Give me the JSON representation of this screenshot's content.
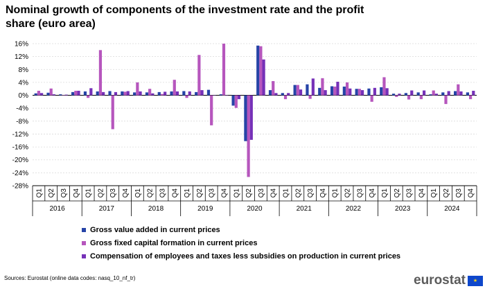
{
  "title": "Nominal growth of components of the investment rate and the profit share (euro area)",
  "source": "Sources: Eurostat (online data codes: nasq_10_nf_tr)",
  "logo": {
    "text": "eurostat",
    "flag_symbol": "★"
  },
  "chart_data": {
    "type": "bar",
    "title": "Nominal growth of components of the investment rate and the profit share (euro area)",
    "ylim": [
      -28,
      16
    ],
    "yticks": [
      16,
      12,
      8,
      4,
      0,
      -4,
      -8,
      -12,
      -16,
      -20,
      -24,
      -28
    ],
    "ytick_labels": [
      "16%",
      "12%",
      "8%",
      "4%",
      "0%",
      "-4%",
      "-8%",
      "-12%",
      "-16%",
      "-20%",
      "-24%",
      "-28%"
    ],
    "grid": true,
    "legend_position": "bottom",
    "quarter_labels": [
      "Q1",
      "Q2",
      "Q3",
      "Q4",
      "Q1",
      "Q2",
      "Q3",
      "Q4",
      "Q1",
      "Q2",
      "Q3",
      "Q4",
      "Q1",
      "Q2",
      "Q3",
      "Q4",
      "Q1",
      "Q2",
      "Q3",
      "Q4",
      "Q1",
      "Q2",
      "Q3",
      "Q4",
      "Q1",
      "Q2",
      "Q3",
      "Q4",
      "Q1",
      "Q2",
      "Q3",
      "Q4",
      "Q1",
      "Q2",
      "Q3",
      "Q4"
    ],
    "years": [
      "2016",
      "2017",
      "2018",
      "2019",
      "2020",
      "2021",
      "2022",
      "2023",
      "2024"
    ],
    "series": [
      {
        "name": "Gross value added in current prices",
        "color": "#2644a7",
        "values": [
          0.6,
          0.8,
          0.3,
          1.0,
          1.2,
          1.2,
          1.3,
          1.2,
          0.9,
          0.9,
          1.0,
          1.2,
          1.3,
          1.0,
          1.7,
          0.3,
          -3.2,
          -14.2,
          15.4,
          1.6,
          0.7,
          3.2,
          3.4,
          2.3,
          2.8,
          2.7,
          2.0,
          2.1,
          2.5,
          0.5,
          0.7,
          0.9,
          0.3,
          0.9,
          1.3,
          0.9
        ]
      },
      {
        "name": "Gross fixed capital formation in current prices",
        "color": "#b656bd",
        "values": [
          1.4,
          2.1,
          0.0,
          1.4,
          -0.8,
          14.0,
          -10.5,
          1.1,
          4.0,
          2.0,
          0.4,
          4.8,
          -0.8,
          12.5,
          -9.3,
          16.0,
          -3.9,
          -25.3,
          15.2,
          4.4,
          -1.2,
          3.2,
          -1.1,
          5.3,
          2.7,
          4.0,
          2.0,
          -2.0,
          5.6,
          -0.5,
          -1.3,
          -1.2,
          1.5,
          -2.7,
          3.4,
          -1.2
        ]
      },
      {
        "name": "Compensation of employees and taxes less subsidies on production in current prices",
        "color": "#7631b8",
        "values": [
          0.7,
          0.3,
          0.2,
          1.4,
          2.2,
          1.0,
          1.0,
          1.3,
          1.2,
          0.6,
          1.1,
          1.2,
          1.2,
          1.6,
          0.0,
          0.0,
          -1.2,
          -13.8,
          11.1,
          0.7,
          0.7,
          1.8,
          5.2,
          1.6,
          4.2,
          2.1,
          1.6,
          2.3,
          2.2,
          0.5,
          1.5,
          1.5,
          0.5,
          1.3,
          1.2,
          1.4
        ]
      }
    ]
  }
}
